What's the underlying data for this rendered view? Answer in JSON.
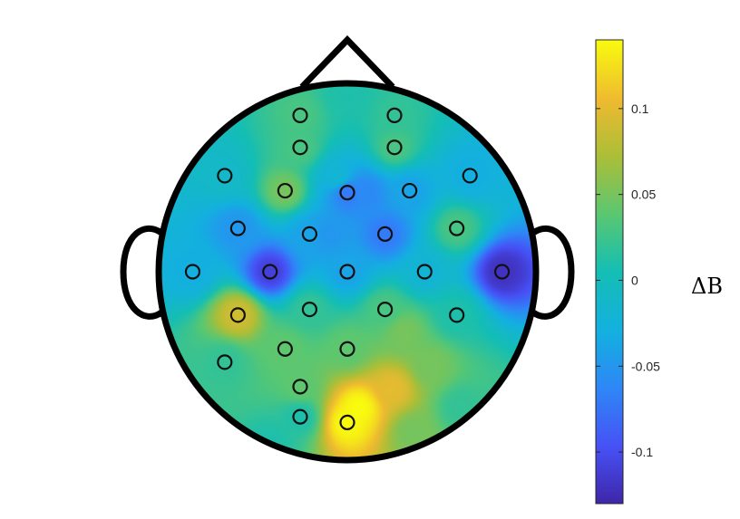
{
  "chart_data": {
    "type": "heatmap",
    "title": "",
    "xlabel": "",
    "ylabel": "",
    "colorbar": {
      "label": "ΔB",
      "range": [
        -0.13,
        0.14
      ],
      "ticks": [
        {
          "value": 0.1,
          "label": "0.1"
        },
        {
          "value": 0.05,
          "label": "0.05"
        },
        {
          "value": 0,
          "label": "0"
        },
        {
          "value": -0.05,
          "label": "-0.05"
        },
        {
          "value": -0.1,
          "label": "-0.1"
        }
      ],
      "colormap": "parula"
    },
    "head": {
      "nose": "top",
      "ears": true,
      "electrode_marker": "circle"
    },
    "electrodes": [
      {
        "x": -0.25,
        "y": 0.83,
        "value": 0.03
      },
      {
        "x": 0.25,
        "y": 0.83,
        "value": 0.02
      },
      {
        "x": -0.25,
        "y": 0.66,
        "value": 0.03
      },
      {
        "x": 0.25,
        "y": 0.66,
        "value": 0.03
      },
      {
        "x": -0.65,
        "y": 0.51,
        "value": -0.01
      },
      {
        "x": -0.33,
        "y": 0.43,
        "value": 0.05
      },
      {
        "x": 0.0,
        "y": 0.42,
        "value": -0.07
      },
      {
        "x": 0.33,
        "y": 0.43,
        "value": -0.04
      },
      {
        "x": 0.65,
        "y": 0.51,
        "value": -0.03
      },
      {
        "x": -0.58,
        "y": 0.23,
        "value": -0.05
      },
      {
        "x": -0.2,
        "y": 0.2,
        "value": -0.04
      },
      {
        "x": 0.2,
        "y": 0.2,
        "value": -0.07
      },
      {
        "x": 0.58,
        "y": 0.23,
        "value": 0.03
      },
      {
        "x": -0.82,
        "y": 0.0,
        "value": -0.03
      },
      {
        "x": -0.41,
        "y": 0.0,
        "value": -0.11
      },
      {
        "x": 0.0,
        "y": 0.0,
        "value": -0.04
      },
      {
        "x": 0.41,
        "y": 0.0,
        "value": -0.02
      },
      {
        "x": 0.82,
        "y": 0.0,
        "value": -0.12
      },
      {
        "x": -0.58,
        "y": -0.23,
        "value": 0.09
      },
      {
        "x": -0.2,
        "y": -0.2,
        "value": 0.02
      },
      {
        "x": 0.2,
        "y": -0.2,
        "value": 0.03
      },
      {
        "x": 0.58,
        "y": -0.23,
        "value": 0.01
      },
      {
        "x": -0.33,
        "y": -0.41,
        "value": 0.04
      },
      {
        "x": 0.0,
        "y": -0.41,
        "value": 0.04
      },
      {
        "x": -0.65,
        "y": -0.48,
        "value": 0.02
      },
      {
        "x": -0.25,
        "y": -0.61,
        "value": 0.04
      },
      {
        "x": -0.25,
        "y": -0.77,
        "value": 0.01
      },
      {
        "x": 0.0,
        "y": -0.8,
        "value": 0.14
      }
    ],
    "extra_field_points": [
      {
        "x": 0.06,
        "y": -0.72,
        "value": 0.14
      },
      {
        "x": 0.24,
        "y": -0.62,
        "value": 0.1
      },
      {
        "x": 0.44,
        "y": -0.5,
        "value": 0.05
      },
      {
        "x": 0.3,
        "y": -0.32,
        "value": 0.05
      },
      {
        "x": 0.6,
        "y": -0.72,
        "value": 0.02
      },
      {
        "x": -0.4,
        "y": -0.9,
        "value": 0.01
      },
      {
        "x": 0.35,
        "y": -0.85,
        "value": 0.05
      },
      {
        "x": 0.0,
        "y": 0.92,
        "value": 0.01
      },
      {
        "x": -0.1,
        "y": 0.2,
        "value": -0.05
      },
      {
        "x": 0.1,
        "y": 0.42,
        "value": -0.06
      },
      {
        "x": -0.05,
        "y": 0.5,
        "value": -0.02
      }
    ]
  }
}
